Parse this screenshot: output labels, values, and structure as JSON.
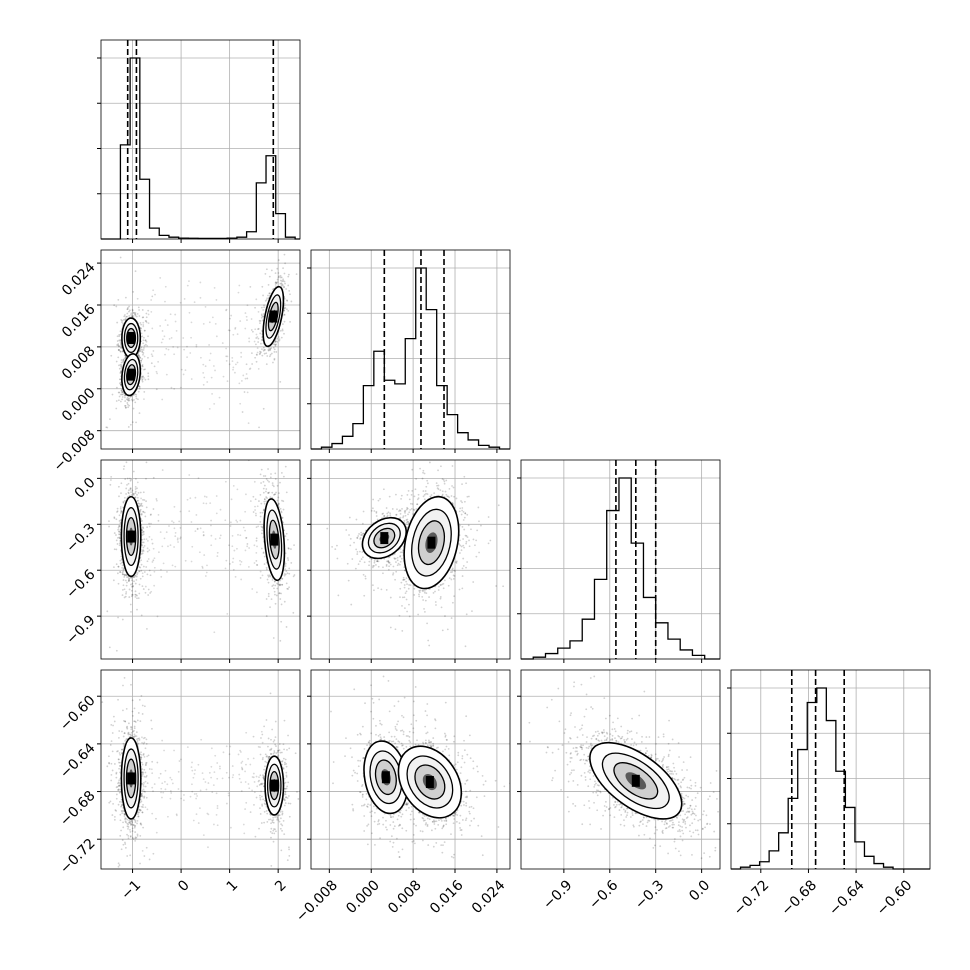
{
  "chart_data": {
    "type": "corner",
    "n_params": 4,
    "parameters": [
      {
        "index": 0,
        "range": [
          -1.65,
          2.45
        ],
        "ticks": [
          -1,
          0,
          1,
          2
        ],
        "tick_labels": [
          "−1",
          "0",
          "1",
          "2"
        ]
      },
      {
        "index": 1,
        "range": [
          -0.0115,
          0.0265
        ],
        "ticks": [
          -0.008,
          0.0,
          0.008,
          0.016,
          0.024
        ],
        "tick_labels": [
          "−0.008",
          "0.000",
          "0.008",
          "0.016",
          "0.024"
        ]
      },
      {
        "index": 2,
        "range": [
          -1.18,
          0.12
        ],
        "ticks": [
          -0.9,
          -0.6,
          -0.3,
          0.0
        ],
        "tick_labels": [
          "−0.9",
          "−0.6",
          "−0.3",
          "0.0"
        ]
      },
      {
        "index": 3,
        "range": [
          -0.745,
          -0.578
        ],
        "ticks": [
          -0.72,
          -0.68,
          -0.64,
          -0.6
        ],
        "tick_labels": [
          "−0.72",
          "−0.68",
          "−0.64",
          "−0.60"
        ]
      }
    ],
    "histograms": [
      {
        "param": 0,
        "quantiles": [
          -1.1,
          -0.92,
          1.9
        ],
        "bins": [
          -1.65,
          -1.45,
          -1.25,
          -1.05,
          -0.85,
          -0.65,
          -0.45,
          -0.25,
          -0.05,
          0.15,
          0.35,
          0.55,
          0.75,
          0.95,
          1.15,
          1.35,
          1.55,
          1.75,
          1.95,
          2.15,
          2.35,
          2.45
        ],
        "counts": [
          0,
          0,
          0.52,
          1.0,
          0.33,
          0.06,
          0.02,
          0.01,
          0.005,
          0.004,
          0.003,
          0.003,
          0.003,
          0.005,
          0.01,
          0.04,
          0.31,
          0.46,
          0.14,
          0.01,
          0.0
        ]
      },
      {
        "param": 1,
        "quantiles": [
          0.0025,
          0.0095,
          0.0139
        ],
        "bins": [
          -0.0115,
          -0.0095,
          -0.0075,
          -0.0055,
          -0.0035,
          -0.0015,
          0.0005,
          0.0025,
          0.0045,
          0.0065,
          0.0085,
          0.0105,
          0.0125,
          0.0145,
          0.0165,
          0.0185,
          0.0205,
          0.0225,
          0.0245,
          0.0265
        ],
        "counts": [
          0,
          0.01,
          0.03,
          0.07,
          0.14,
          0.35,
          0.54,
          0.38,
          0.36,
          0.61,
          1.0,
          0.77,
          0.35,
          0.19,
          0.09,
          0.05,
          0.02,
          0.01,
          0.0
        ]
      },
      {
        "param": 2,
        "quantiles": [
          -0.56,
          -0.43,
          -0.3
        ],
        "bins": [
          -1.18,
          -1.1,
          -1.02,
          -0.94,
          -0.86,
          -0.78,
          -0.7,
          -0.62,
          -0.54,
          -0.46,
          -0.38,
          -0.3,
          -0.22,
          -0.14,
          -0.06,
          0.02,
          0.12
        ],
        "counts": [
          0,
          0.01,
          0.03,
          0.06,
          0.1,
          0.22,
          0.44,
          0.82,
          1.0,
          0.64,
          0.34,
          0.2,
          0.11,
          0.05,
          0.02,
          0.0
        ]
      },
      {
        "param": 3,
        "quantiles": [
          -0.694,
          -0.674,
          -0.65
        ],
        "bins": [
          -0.745,
          -0.737,
          -0.729,
          -0.721,
          -0.713,
          -0.705,
          -0.697,
          -0.689,
          -0.681,
          -0.673,
          -0.665,
          -0.657,
          -0.649,
          -0.641,
          -0.633,
          -0.625,
          -0.617,
          -0.609,
          -0.601,
          -0.593,
          -0.585,
          -0.578
        ],
        "counts": [
          0,
          0.01,
          0.02,
          0.04,
          0.1,
          0.2,
          0.39,
          0.66,
          0.92,
          1.0,
          0.82,
          0.54,
          0.34,
          0.15,
          0.07,
          0.03,
          0.01,
          0.0,
          0.0,
          0.0,
          0.0
        ]
      }
    ],
    "scatter_2d": [
      {
        "x_param": 0,
        "y_param": 1,
        "modes": [
          {
            "cx": -1.03,
            "cy": 0.0097,
            "sx": 0.1,
            "sy": 0.002,
            "rho": 0.0,
            "weight": 0.32
          },
          {
            "cx": -1.03,
            "cy": 0.0027,
            "sx": 0.1,
            "sy": 0.0021,
            "rho": 0.2,
            "weight": 0.34
          },
          {
            "cx": 1.9,
            "cy": 0.0138,
            "sx": 0.11,
            "sy": 0.003,
            "rho": 0.55,
            "weight": 0.34
          }
        ]
      },
      {
        "x_param": 0,
        "y_param": 2,
        "modes": [
          {
            "cx": -1.03,
            "cy": -0.38,
            "sx": 0.1,
            "sy": 0.13,
            "rho": 0.0,
            "weight": 0.66
          },
          {
            "cx": 1.92,
            "cy": -0.4,
            "sx": 0.11,
            "sy": 0.14,
            "rho": -0.3,
            "weight": 0.34
          }
        ]
      },
      {
        "x_param": 0,
        "y_param": 3,
        "modes": [
          {
            "cx": -1.03,
            "cy": -0.669,
            "sx": 0.1,
            "sy": 0.017,
            "rho": 0.0,
            "weight": 0.66
          },
          {
            "cx": 1.92,
            "cy": -0.675,
            "sx": 0.1,
            "sy": 0.013,
            "rho": 0.0,
            "weight": 0.34
          }
        ]
      },
      {
        "x_param": 1,
        "y_param": 2,
        "modes": [
          {
            "cx": 0.0025,
            "cy": -0.39,
            "sx": 0.0022,
            "sy": 0.07,
            "rho": 0.3,
            "weight": 0.35
          },
          {
            "cx": 0.0115,
            "cy": -0.42,
            "sx": 0.0026,
            "sy": 0.15,
            "rho": 0.25,
            "weight": 0.65
          }
        ]
      },
      {
        "x_param": 1,
        "y_param": 3,
        "modes": [
          {
            "cx": 0.0028,
            "cy": -0.668,
            "sx": 0.0022,
            "sy": 0.016,
            "rho": -0.2,
            "weight": 0.35
          },
          {
            "cx": 0.0112,
            "cy": -0.672,
            "sx": 0.003,
            "sy": 0.015,
            "rho": -0.3,
            "weight": 0.65
          }
        ]
      },
      {
        "x_param": 2,
        "y_param": 3,
        "modes": [
          {
            "cx": -0.43,
            "cy": -0.671,
            "sx": 0.15,
            "sy": 0.016,
            "rho": -0.6,
            "weight": 1.0
          }
        ]
      }
    ],
    "grid": true,
    "title": "",
    "axis_labels": []
  },
  "colors": {
    "line": "#000000",
    "grid": "#b0b0b0",
    "points": "#000000"
  }
}
